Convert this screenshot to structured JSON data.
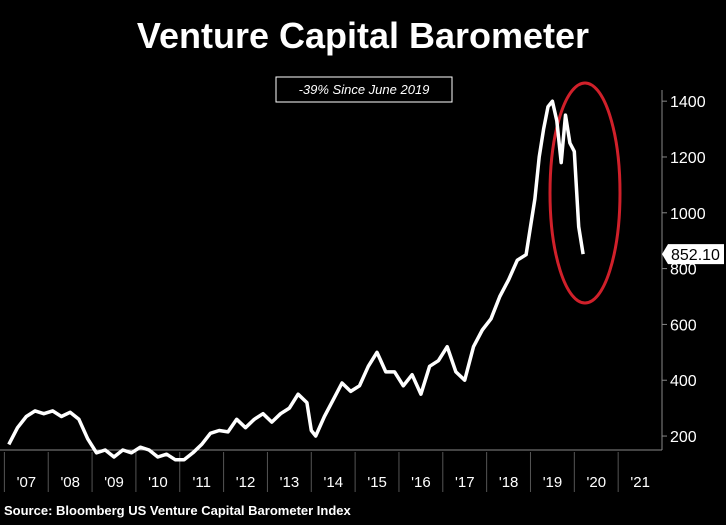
{
  "chart_data": {
    "type": "line",
    "title": "Venture Capital Barometer",
    "annotation": "-39% Since June 2019",
    "source": "Source: Bloomberg US Venture Capital Barometer Index",
    "x": [
      2007.1,
      2007.3,
      2007.5,
      2007.7,
      2007.9,
      2008.1,
      2008.3,
      2008.5,
      2008.7,
      2008.9,
      2009.1,
      2009.3,
      2009.5,
      2009.7,
      2009.9,
      2010.1,
      2010.3,
      2010.5,
      2010.7,
      2010.9,
      2011.1,
      2011.3,
      2011.5,
      2011.7,
      2011.9,
      2012.1,
      2012.3,
      2012.5,
      2012.7,
      2012.9,
      2013.1,
      2013.3,
      2013.5,
      2013.7,
      2013.9,
      2014.0,
      2014.1,
      2014.3,
      2014.5,
      2014.7,
      2014.9,
      2015.1,
      2015.3,
      2015.5,
      2015.7,
      2015.9,
      2016.1,
      2016.3,
      2016.5,
      2016.7,
      2016.9,
      2017.1,
      2017.3,
      2017.5,
      2017.7,
      2017.9,
      2018.1,
      2018.3,
      2018.5,
      2018.7,
      2018.9,
      2019.0,
      2019.1,
      2019.2,
      2019.3,
      2019.4,
      2019.5,
      2019.6,
      2019.7,
      2019.8,
      2019.9,
      2020.0,
      2020.1,
      2020.2
    ],
    "series": [
      {
        "name": "Bloomberg US Venture Capital Barometer Index",
        "color": "#ffffff",
        "values": [
          170,
          230,
          270,
          290,
          280,
          290,
          270,
          285,
          260,
          190,
          140,
          150,
          125,
          150,
          140,
          160,
          150,
          125,
          135,
          115,
          115,
          140,
          170,
          210,
          220,
          215,
          260,
          230,
          260,
          280,
          250,
          280,
          300,
          350,
          320,
          220,
          200,
          270,
          330,
          390,
          360,
          380,
          450,
          500,
          430,
          430,
          380,
          420,
          350,
          450,
          470,
          520,
          430,
          400,
          520,
          580,
          620,
          700,
          760,
          830,
          850,
          950,
          1050,
          1200,
          1300,
          1380,
          1400,
          1330,
          1180,
          1350,
          1250,
          1220,
          950,
          852.1
        ]
      }
    ],
    "end_label": {
      "value": 852.1,
      "label": "852.10"
    },
    "xlim": [
      2006.9,
      2022.0
    ],
    "xticks": [
      {
        "value": 2007,
        "label": "'07"
      },
      {
        "value": 2008,
        "label": "'08"
      },
      {
        "value": 2009,
        "label": "'09"
      },
      {
        "value": 2010,
        "label": "'10"
      },
      {
        "value": 2011,
        "label": "'11"
      },
      {
        "value": 2012,
        "label": "'12"
      },
      {
        "value": 2013,
        "label": "'13"
      },
      {
        "value": 2014,
        "label": "'14"
      },
      {
        "value": 2015,
        "label": "'15"
      },
      {
        "value": 2016,
        "label": "'16"
      },
      {
        "value": 2017,
        "label": "'17"
      },
      {
        "value": 2018,
        "label": "'18"
      },
      {
        "value": 2019,
        "label": "'19"
      },
      {
        "value": 2020,
        "label": "'20"
      },
      {
        "value": 2021,
        "label": "'21"
      }
    ],
    "ylim": [
      150,
      1440
    ],
    "yticks": [
      200,
      400,
      600,
      800,
      1000,
      1200,
      1400
    ]
  }
}
